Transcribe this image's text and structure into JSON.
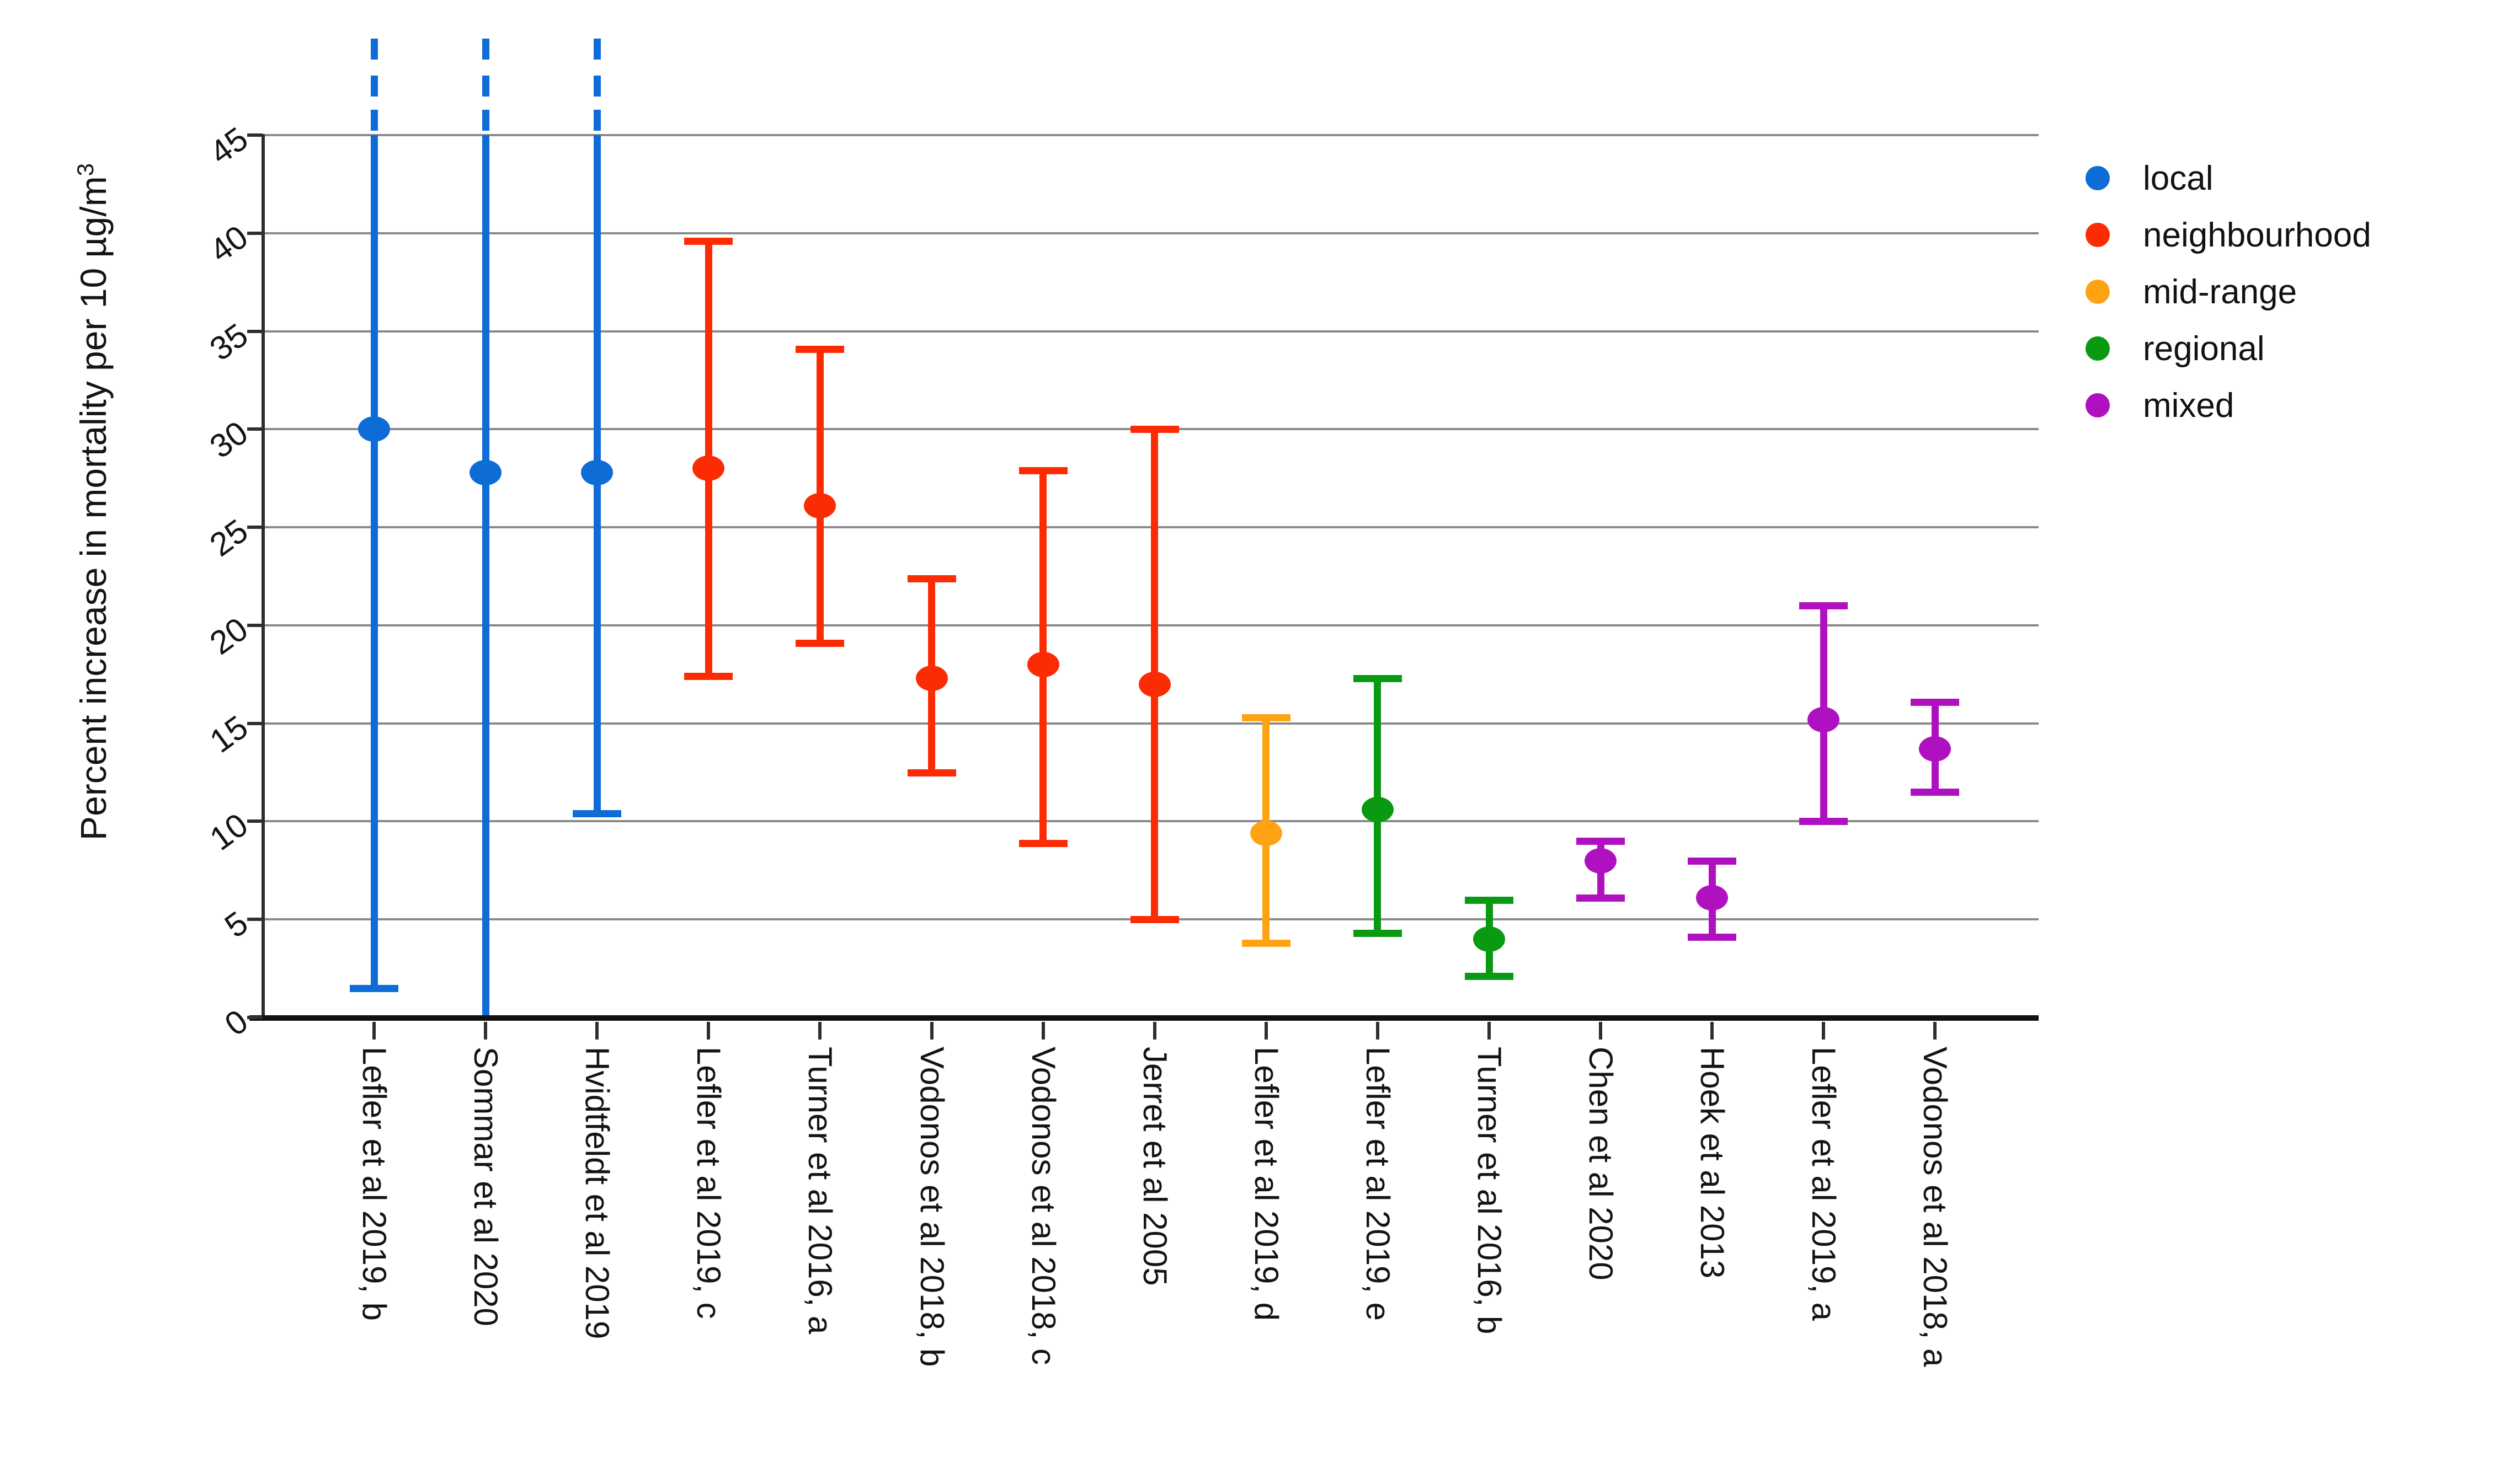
{
  "chart_data": {
    "type": "scatter",
    "subtype": "point-with-error-bars",
    "title": "",
    "xlabel": "",
    "ylabel": {
      "text": "Percent increase in mortality per 10 µg/m",
      "sup": "3"
    },
    "ylim": [
      0,
      45
    ],
    "yticks": [
      0,
      5,
      10,
      15,
      20,
      25,
      30,
      35,
      40,
      45
    ],
    "grid": true,
    "legend": {
      "position": "top-right",
      "items": [
        {
          "label": "local",
          "color": "#0d6cd6"
        },
        {
          "label": "neighbourhood",
          "color": "#fb2b04"
        },
        {
          "label": "mid-range",
          "color": "#ffa313"
        },
        {
          "label": "regional",
          "color": "#0a9a12"
        },
        {
          "label": "mixed",
          "color": "#b011c0"
        }
      ]
    },
    "points": [
      {
        "label": "Lefler et al 2019, b",
        "group": "local",
        "y": 30.0,
        "lo": 1.5,
        "hi": 48,
        "clip_high": true
      },
      {
        "label": "Sommar et al 2020",
        "group": "local",
        "y": 27.8,
        "lo": 0,
        "hi": 48,
        "clip_high": true,
        "clip_low": true
      },
      {
        "label": "Hvidtfeldt et al 2019",
        "group": "local",
        "y": 27.8,
        "lo": 10.4,
        "hi": 48,
        "clip_high": true
      },
      {
        "label": "Lefler et al 2019, c",
        "group": "neighbourhood",
        "y": 28.0,
        "lo": 17.4,
        "hi": 39.6
      },
      {
        "label": "Turner et al 2016, a",
        "group": "neighbourhood",
        "y": 26.1,
        "lo": 19.1,
        "hi": 34.1
      },
      {
        "label": "Vodonos et al 2018, b",
        "group": "neighbourhood",
        "y": 17.3,
        "lo": 12.5,
        "hi": 22.4
      },
      {
        "label": "Vodonos et al 2018, c",
        "group": "neighbourhood",
        "y": 18.0,
        "lo": 8.9,
        "hi": 27.9
      },
      {
        "label": "Jerret et al 2005",
        "group": "neighbourhood",
        "y": 17.0,
        "lo": 5.0,
        "hi": 30.0
      },
      {
        "label": "Lefler et al 2019, d",
        "group": "mid-range",
        "y": 9.4,
        "lo": 3.8,
        "hi": 15.3
      },
      {
        "label": "Lefler et al 2019, e",
        "group": "regional",
        "y": 10.6,
        "lo": 4.3,
        "hi": 17.3
      },
      {
        "label": "Turner et al 2016, b",
        "group": "regional",
        "y": 4.0,
        "lo": 2.1,
        "hi": 6.0
      },
      {
        "label": "Chen et al 2020",
        "group": "mixed",
        "y": 8.0,
        "lo": 6.1,
        "hi": 9.0
      },
      {
        "label": "Hoek et al 2013",
        "group": "mixed",
        "y": 6.1,
        "lo": 4.1,
        "hi": 8.0
      },
      {
        "label": "Lefler et al 2019, a",
        "group": "mixed",
        "y": 15.2,
        "lo": 10.0,
        "hi": 21.0
      },
      {
        "label": "Vodonos et al 2018, a",
        "group": "mixed",
        "y": 13.7,
        "lo": 11.5,
        "hi": 16.1
      }
    ]
  }
}
